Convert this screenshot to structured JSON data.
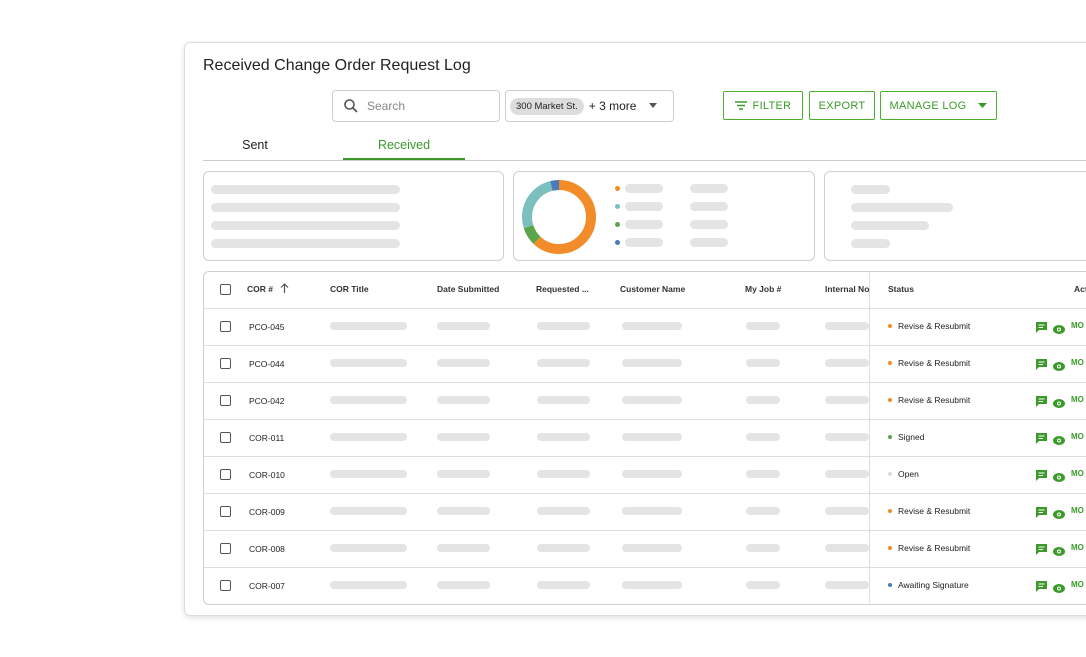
{
  "header": {
    "title": "Received Change Order Request Log"
  },
  "toolbar": {
    "search_placeholder": "Search",
    "location_chip": "300 Market St.",
    "more": "+ 3 more",
    "buttons": [
      "FILTER",
      "EXPORT",
      "MANAGE LOG"
    ]
  },
  "tabs": [
    "Sent",
    "Received"
  ],
  "donut": {
    "segments": [
      {
        "color": "#f28c28",
        "value": 62
      },
      {
        "color": "#5aa54a",
        "value": 8
      },
      {
        "color": "#7bbfbf",
        "value": 26
      },
      {
        "color": "#4a7ab8",
        "value": 4
      }
    ]
  },
  "table": {
    "columns": [
      "COR #",
      "COR Title",
      "Date Submitted",
      "Requested ...",
      "Customer Name",
      "My Job #",
      "Internal No",
      "Status",
      "Act"
    ],
    "rows": [
      {
        "id": "PCO-045",
        "status": "Revise & Resubmit",
        "status_color": "#f28c28",
        "action": "MO"
      },
      {
        "id": "PCO-044",
        "status": "Revise & Resubmit",
        "status_color": "#f28c28",
        "action": "MO"
      },
      {
        "id": "PCO-042",
        "status": "Revise & Resubmit",
        "status_color": "#f28c28",
        "action": "MO"
      },
      {
        "id": "COR-011",
        "status": "Signed",
        "status_color": "#5aa54a",
        "action": "MO"
      },
      {
        "id": "COR-010",
        "status": "Open",
        "status_color": "#dcdcdc",
        "action": "MO"
      },
      {
        "id": "COR-009",
        "status": "Revise & Resubmit",
        "status_color": "#f28c28",
        "action": "MO"
      },
      {
        "id": "COR-008",
        "status": "Revise & Resubmit",
        "status_color": "#f28c28",
        "action": "MO"
      },
      {
        "id": "COR-007",
        "status": "Awaiting Signature",
        "status_color": "#4a7ab8",
        "action": "MO"
      }
    ]
  }
}
